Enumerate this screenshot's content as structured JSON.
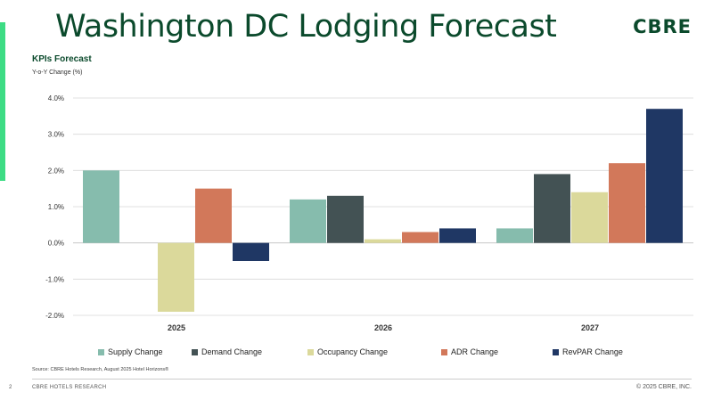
{
  "page": {
    "title": "Washington DC Lodging Forecast",
    "logo": "CBRE",
    "page_number": "2",
    "footer_left": "CBRE HOTELS RESEARCH",
    "footer_right": "© 2025 CBRE, INC.",
    "source": "Source: CBRE Hotels Research,  August 2025 Hotel Horizons®"
  },
  "colors": {
    "title": "#0b4a2c",
    "accent": "#3ddc84",
    "gridline": "#d9d9d9"
  },
  "chart_data": {
    "type": "bar",
    "title": "KPIs Forecast",
    "ylabel": "Y-o-Y Change (%)",
    "xlabel": "",
    "ylim": [
      -2.0,
      4.0
    ],
    "yticks": [
      4.0,
      3.0,
      2.0,
      1.0,
      0.0,
      -1.0,
      -2.0
    ],
    "ytick_labels": [
      "4.0%",
      "3.0%",
      "2.0%",
      "1.0%",
      "0.0%",
      "-1.0%",
      "-2.0%"
    ],
    "categories": [
      "2025",
      "2026",
      "2027"
    ],
    "grid": true,
    "legend_position": "bottom",
    "series": [
      {
        "name": "Supply Change",
        "color": "#86bcad",
        "values": [
          2.0,
          1.2,
          0.4
        ]
      },
      {
        "name": "Demand Change",
        "color": "#435254",
        "values": [
          0.0,
          1.3,
          1.9
        ]
      },
      {
        "name": "Occupancy Change",
        "color": "#dbd99b",
        "values": [
          -1.9,
          0.1,
          1.4
        ]
      },
      {
        "name": "ADR Change",
        "color": "#d2785a",
        "values": [
          1.5,
          0.3,
          2.2
        ]
      },
      {
        "name": "RevPAR Change",
        "color": "#1f3764",
        "values": [
          -0.5,
          0.4,
          3.7
        ]
      }
    ]
  }
}
